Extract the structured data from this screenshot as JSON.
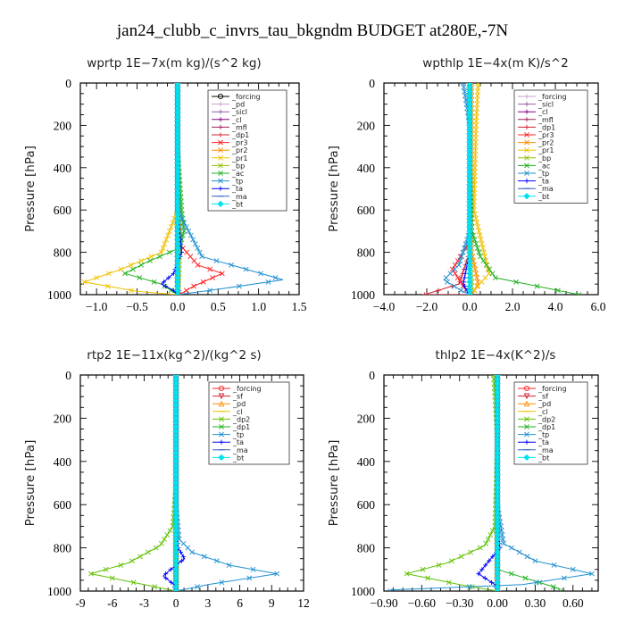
{
  "title": "jan24_clubb_c_invrs_tau_bkgndm  BUDGET at280E,-7N",
  "chart_data": [
    {
      "type": "line",
      "name": "wprtp",
      "title": "wprtp   1E−7x(m kg)/(s^2 kg)",
      "ylabel": "Pressure [hPa]",
      "xlim": [
        -1.2,
        1.5
      ],
      "ylim": [
        1000,
        0
      ],
      "xticks": [
        -1.0,
        -0.5,
        0.0,
        0.5,
        1.0,
        1.5
      ],
      "xtick_labels": [
        "−1.0",
        "−0.5",
        "0.0",
        "0.5",
        "1.0",
        "1.5"
      ],
      "yticks": [
        0,
        200,
        400,
        600,
        800,
        1000
      ],
      "legend_position": "top-right",
      "series": [
        {
          "name": "_forcing",
          "color": "#000000",
          "marker": "o",
          "x": [
            0,
            0,
            0,
            0,
            0
          ],
          "y": [
            0,
            250,
            500,
            750,
            1000
          ]
        },
        {
          "name": "_pd",
          "color": "#c8a0c8",
          "marker": "+",
          "x": [
            0,
            0,
            0,
            0,
            0
          ],
          "y": [
            0,
            250,
            500,
            750,
            1000
          ]
        },
        {
          "name": "_sicl",
          "color": "#9060a0",
          "marker": "+",
          "x": [
            0,
            0,
            0,
            0,
            0
          ],
          "y": [
            0,
            250,
            500,
            750,
            1000
          ]
        },
        {
          "name": "_cl",
          "color": "#800080",
          "marker": "+",
          "x": [
            0,
            0,
            0,
            0,
            0
          ],
          "y": [
            0,
            250,
            500,
            750,
            1000
          ]
        },
        {
          "name": "_mfl",
          "color": "#a0205a",
          "marker": "+",
          "x": [
            0,
            0,
            0,
            0,
            0
          ],
          "y": [
            0,
            250,
            500,
            750,
            1000
          ]
        },
        {
          "name": "_dp1",
          "color": "#d02030",
          "marker": "+",
          "x": [
            0,
            0,
            0,
            0,
            0.02
          ],
          "y": [
            0,
            250,
            500,
            750,
            1000
          ]
        },
        {
          "name": "_pr3",
          "color": "#ff2020",
          "marker": "x",
          "x": [
            0,
            0,
            0,
            0.02,
            0.25,
            0.55,
            0.2,
            0.02
          ],
          "y": [
            0,
            300,
            600,
            760,
            860,
            900,
            960,
            1000
          ]
        },
        {
          "name": "_pr2",
          "color": "#ff8c00",
          "marker": "x",
          "x": [
            0,
            0,
            0,
            0,
            0
          ],
          "y": [
            0,
            250,
            500,
            750,
            1000
          ]
        },
        {
          "name": "_pr1",
          "color": "#f0c000",
          "marker": "x",
          "x": [
            0,
            0,
            0,
            -0.2,
            -0.7,
            -1.15,
            -0.5,
            0
          ],
          "y": [
            0,
            300,
            600,
            800,
            880,
            940,
            985,
            1000
          ]
        },
        {
          "name": "_bp",
          "color": "#90c000",
          "marker": "x",
          "x": [
            0,
            0,
            0.02,
            0.03,
            0.02,
            0
          ],
          "y": [
            0,
            300,
            600,
            750,
            900,
            1000
          ]
        },
        {
          "name": "_ac",
          "color": "#20b020",
          "marker": "x",
          "x": [
            0,
            0,
            0.05,
            0.08,
            0.02,
            -0.4,
            -0.65,
            -0.2,
            0
          ],
          "y": [
            0,
            300,
            600,
            700,
            780,
            850,
            900,
            950,
            1000
          ]
        },
        {
          "name": "_tp",
          "color": "#2090d0",
          "marker": "x",
          "x": [
            0,
            0,
            0,
            0.3,
            1.3,
            0.4,
            0
          ],
          "y": [
            0,
            300,
            600,
            820,
            930,
            980,
            1000
          ]
        },
        {
          "name": "_ta",
          "color": "#0000ff",
          "marker": "+",
          "x": [
            0,
            0,
            0,
            0.05,
            -0.05,
            -0.2,
            -0.05,
            0
          ],
          "y": [
            0,
            300,
            600,
            800,
            900,
            950,
            980,
            1000
          ]
        },
        {
          "name": "_ma",
          "color": "#3060c0",
          "marker": "_",
          "x": [
            0,
            0,
            0,
            0
          ],
          "y": [
            0,
            400,
            800,
            1000
          ]
        },
        {
          "name": "_bt",
          "color": "#00e0f0",
          "marker": "D",
          "x": [
            0,
            0,
            0,
            0
          ],
          "y": [
            0,
            400,
            800,
            1000
          ]
        }
      ]
    },
    {
      "type": "line",
      "name": "wpthlp",
      "title": "wpthlp   1E−4x(m K)/s^2",
      "ylabel": "Pressure [hPa]",
      "xlim": [
        -4.0,
        6.0
      ],
      "ylim": [
        1000,
        0
      ],
      "xticks": [
        -4.0,
        -2.0,
        0.0,
        2.0,
        4.0,
        6.0
      ],
      "xtick_labels": [
        "−4.0",
        "−2.0",
        "0.0",
        "2.0",
        "4.0",
        "6.0"
      ],
      "yticks": [
        0,
        200,
        400,
        600,
        800,
        1000
      ],
      "legend_position": "top-right",
      "series": [
        {
          "name": "_forcing",
          "color": "#c8a0c8",
          "marker": "+",
          "x": [
            0,
            0,
            0,
            0
          ],
          "y": [
            0,
            400,
            800,
            1000
          ]
        },
        {
          "name": "_sicl",
          "color": "#9060a0",
          "marker": "+",
          "x": [
            0,
            0,
            0,
            0
          ],
          "y": [
            0,
            400,
            800,
            1000
          ]
        },
        {
          "name": "_cl",
          "color": "#800080",
          "marker": "+",
          "x": [
            0,
            0,
            0,
            0
          ],
          "y": [
            0,
            400,
            800,
            1000
          ]
        },
        {
          "name": "_mfl",
          "color": "#a0205a",
          "marker": "+",
          "x": [
            0,
            0,
            0,
            0
          ],
          "y": [
            0,
            400,
            800,
            1000
          ]
        },
        {
          "name": "_dp1",
          "color": "#d02030",
          "marker": "+",
          "x": [
            0,
            0,
            0,
            -0.5,
            -2.1,
            0
          ],
          "y": [
            0,
            400,
            800,
            950,
            1000,
            1000
          ]
        },
        {
          "name": "_pr3",
          "color": "#ff2020",
          "marker": "x",
          "x": [
            0,
            0,
            0,
            -0.8,
            -0.3,
            0
          ],
          "y": [
            0,
            400,
            750,
            880,
            960,
            1000
          ]
        },
        {
          "name": "_pr2",
          "color": "#ff8c00",
          "marker": "x",
          "x": [
            0.1,
            0.1,
            0.1,
            0.4,
            0.1
          ],
          "y": [
            0,
            400,
            800,
            950,
            1000
          ]
        },
        {
          "name": "_pr1",
          "color": "#f0c000",
          "marker": "x",
          "x": [
            0.4,
            0.3,
            0.2,
            0.9,
            0.3,
            0
          ],
          "y": [
            0,
            200,
            600,
            900,
            970,
            1000
          ]
        },
        {
          "name": "_bp",
          "color": "#90c000",
          "marker": "x",
          "x": [
            0,
            0,
            0,
            0.1,
            0
          ],
          "y": [
            0,
            400,
            800,
            950,
            1000
          ]
        },
        {
          "name": "_ac",
          "color": "#20b020",
          "marker": "x",
          "x": [
            0,
            0,
            0.1,
            0.5,
            1.2,
            5.1
          ],
          "y": [
            0,
            400,
            700,
            820,
            920,
            1000
          ]
        },
        {
          "name": "_tp",
          "color": "#2090d0",
          "marker": "x",
          "x": [
            -0.3,
            0,
            0,
            -0.5,
            -1.2,
            -0.4,
            0
          ],
          "y": [
            0,
            200,
            700,
            860,
            930,
            980,
            1000
          ]
        },
        {
          "name": "_ta",
          "color": "#0000ff",
          "marker": "+",
          "x": [
            0,
            0,
            0,
            -0.3,
            0
          ],
          "y": [
            0,
            400,
            800,
            950,
            1000
          ]
        },
        {
          "name": "_ma",
          "color": "#3060c0",
          "marker": "_",
          "x": [
            0,
            0,
            0
          ],
          "y": [
            0,
            500,
            1000
          ]
        },
        {
          "name": "_bt",
          "color": "#00e0f0",
          "marker": "D",
          "x": [
            0,
            0,
            0
          ],
          "y": [
            0,
            500,
            1000
          ]
        }
      ]
    },
    {
      "type": "line",
      "name": "rtp2",
      "title": "rtp2   1E−11x(kg^2)/(kg^2 s)",
      "ylabel": "Pressure [hPa]",
      "xlim": [
        -9,
        12
      ],
      "ylim": [
        1000,
        0
      ],
      "xticks": [
        -9,
        -6,
        -3,
        0,
        3,
        6,
        9,
        12
      ],
      "xtick_labels": [
        "-9",
        "-6",
        "-3",
        "0",
        "3",
        "6",
        "9",
        "12"
      ],
      "yticks": [
        0,
        200,
        400,
        600,
        800,
        1000
      ],
      "legend_position": "top-right",
      "series": [
        {
          "name": "_forcing",
          "color": "#ff2020",
          "marker": "o",
          "x": [
            0,
            0,
            0,
            0
          ],
          "y": [
            0,
            400,
            800,
            1000
          ]
        },
        {
          "name": "_sf",
          "color": "#d02030",
          "marker": "v",
          "x": [
            0,
            0,
            0,
            0
          ],
          "y": [
            0,
            400,
            800,
            1000
          ]
        },
        {
          "name": "_pd",
          "color": "#ff8c00",
          "marker": "^",
          "x": [
            0,
            0,
            0,
            0
          ],
          "y": [
            0,
            400,
            800,
            1000
          ]
        },
        {
          "name": "_cl",
          "color": "#f0c000",
          "marker": "_",
          "x": [
            0,
            0,
            0,
            0
          ],
          "y": [
            0,
            400,
            800,
            1000
          ]
        },
        {
          "name": "_dp2",
          "color": "#60c000",
          "marker": "x",
          "x": [
            0,
            0,
            -0.3,
            -1.5,
            -4.5,
            -8.0,
            -3.0,
            0
          ],
          "y": [
            0,
            500,
            700,
            790,
            870,
            920,
            970,
            1000
          ]
        },
        {
          "name": "_dp1",
          "color": "#20b020",
          "marker": "x",
          "x": [
            0,
            0,
            0,
            0,
            0
          ],
          "y": [
            0,
            300,
            600,
            900,
            1000
          ]
        },
        {
          "name": "_tp",
          "color": "#2090d0",
          "marker": "x",
          "x": [
            0,
            0,
            0.3,
            1.5,
            5.0,
            9.5,
            3.0,
            0
          ],
          "y": [
            0,
            600,
            760,
            820,
            880,
            920,
            970,
            1000
          ]
        },
        {
          "name": "_ta",
          "color": "#0000ff",
          "marker": "+",
          "x": [
            0,
            0,
            0.2,
            0.8,
            -0.5,
            -1.2,
            -0.2,
            0
          ],
          "y": [
            0,
            700,
            800,
            850,
            900,
            930,
            970,
            1000
          ]
        },
        {
          "name": "_ma",
          "color": "#3060c0",
          "marker": "_",
          "x": [
            0,
            0,
            0
          ],
          "y": [
            0,
            500,
            1000
          ]
        },
        {
          "name": "_bt",
          "color": "#00e0f0",
          "marker": "D",
          "x": [
            0,
            0,
            0
          ],
          "y": [
            0,
            500,
            1000
          ]
        }
      ]
    },
    {
      "type": "line",
      "name": "thlp2",
      "title": "thlp2   1E−4x(K^2)/s",
      "ylabel": "Pressure [hPa]",
      "xlim": [
        -0.9,
        0.8
      ],
      "ylim": [
        1000,
        0
      ],
      "xticks": [
        -0.9,
        -0.6,
        -0.3,
        0.0,
        0.3,
        0.6
      ],
      "xtick_labels": [
        "−0.90",
        "−0.60",
        "−0.30",
        "0.00",
        "0.30",
        "0.60"
      ],
      "yticks": [
        0,
        200,
        400,
        600,
        800,
        1000
      ],
      "legend_position": "top-right",
      "series": [
        {
          "name": "_forcing",
          "color": "#ff2020",
          "marker": "o",
          "x": [
            0,
            0,
            0,
            0
          ],
          "y": [
            0,
            400,
            800,
            1000
          ]
        },
        {
          "name": "_sf",
          "color": "#d02030",
          "marker": "v",
          "x": [
            0,
            0,
            0,
            0
          ],
          "y": [
            0,
            400,
            800,
            1000
          ]
        },
        {
          "name": "_pd",
          "color": "#ff8c00",
          "marker": "^",
          "x": [
            0,
            0,
            0,
            0
          ],
          "y": [
            0,
            400,
            800,
            1000
          ]
        },
        {
          "name": "_cl",
          "color": "#f0c000",
          "marker": "_",
          "x": [
            0,
            0,
            0,
            0
          ],
          "y": [
            0,
            400,
            800,
            1000
          ]
        },
        {
          "name": "_dp2",
          "color": "#60c000",
          "marker": "x",
          "x": [
            -0.03,
            0,
            -0.02,
            -0.1,
            -0.4,
            -0.72,
            -0.3,
            0
          ],
          "y": [
            0,
            300,
            700,
            790,
            870,
            920,
            970,
            1000
          ]
        },
        {
          "name": "_dp1",
          "color": "#20b020",
          "marker": "x",
          "x": [
            0,
            0,
            0,
            0,
            0.5
          ],
          "y": [
            0,
            300,
            600,
            900,
            990
          ]
        },
        {
          "name": "_tp",
          "color": "#2090d0",
          "marker": "x",
          "x": [
            0,
            0,
            0.05,
            0.3,
            0.75,
            0.2,
            -0.85
          ],
          "y": [
            0,
            600,
            780,
            860,
            920,
            970,
            995
          ]
        },
        {
          "name": "_ta",
          "color": "#0000ff",
          "marker": "+",
          "x": [
            0,
            0,
            0.02,
            -0.08,
            -0.15,
            -0.02,
            0
          ],
          "y": [
            0,
            700,
            800,
            870,
            920,
            970,
            1000
          ]
        },
        {
          "name": "_ma",
          "color": "#3060c0",
          "marker": "_",
          "x": [
            0,
            0,
            0
          ],
          "y": [
            0,
            500,
            1000
          ]
        },
        {
          "name": "_bt",
          "color": "#00e0f0",
          "marker": "D",
          "x": [
            0,
            0,
            0
          ],
          "y": [
            0,
            500,
            1000
          ]
        }
      ]
    }
  ]
}
